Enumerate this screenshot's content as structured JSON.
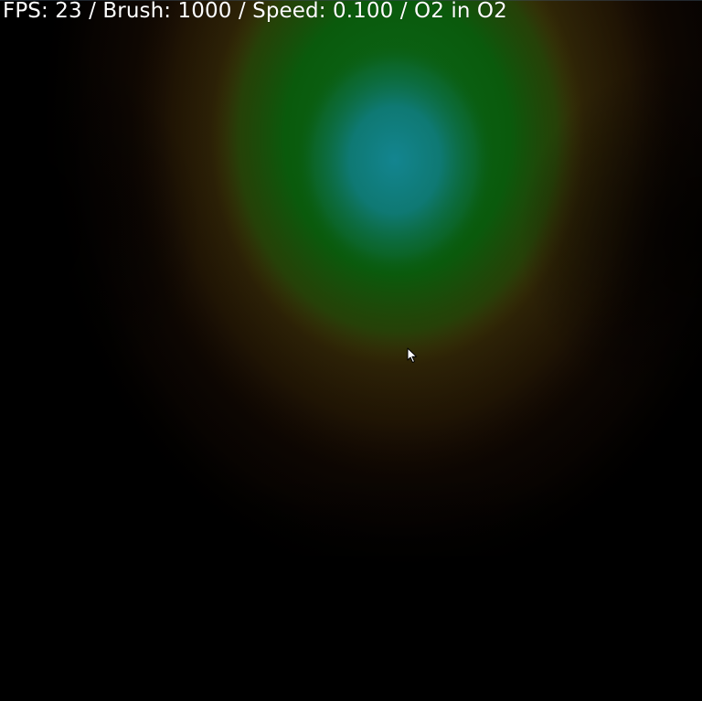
{
  "hud": {
    "text": "FPS: 23 / Brush: 1000 / Speed: 0.100 / O2 in O2"
  },
  "colors": {
    "background": "#000000",
    "hud_text": "#ffffff",
    "plume_core": "#117f86",
    "plume_mid": "#0a5a0c",
    "plume_outer": "#3d3508",
    "plume_fringe": "#2a1504"
  },
  "icons": {
    "cursor": "arrow-pointer-icon"
  }
}
